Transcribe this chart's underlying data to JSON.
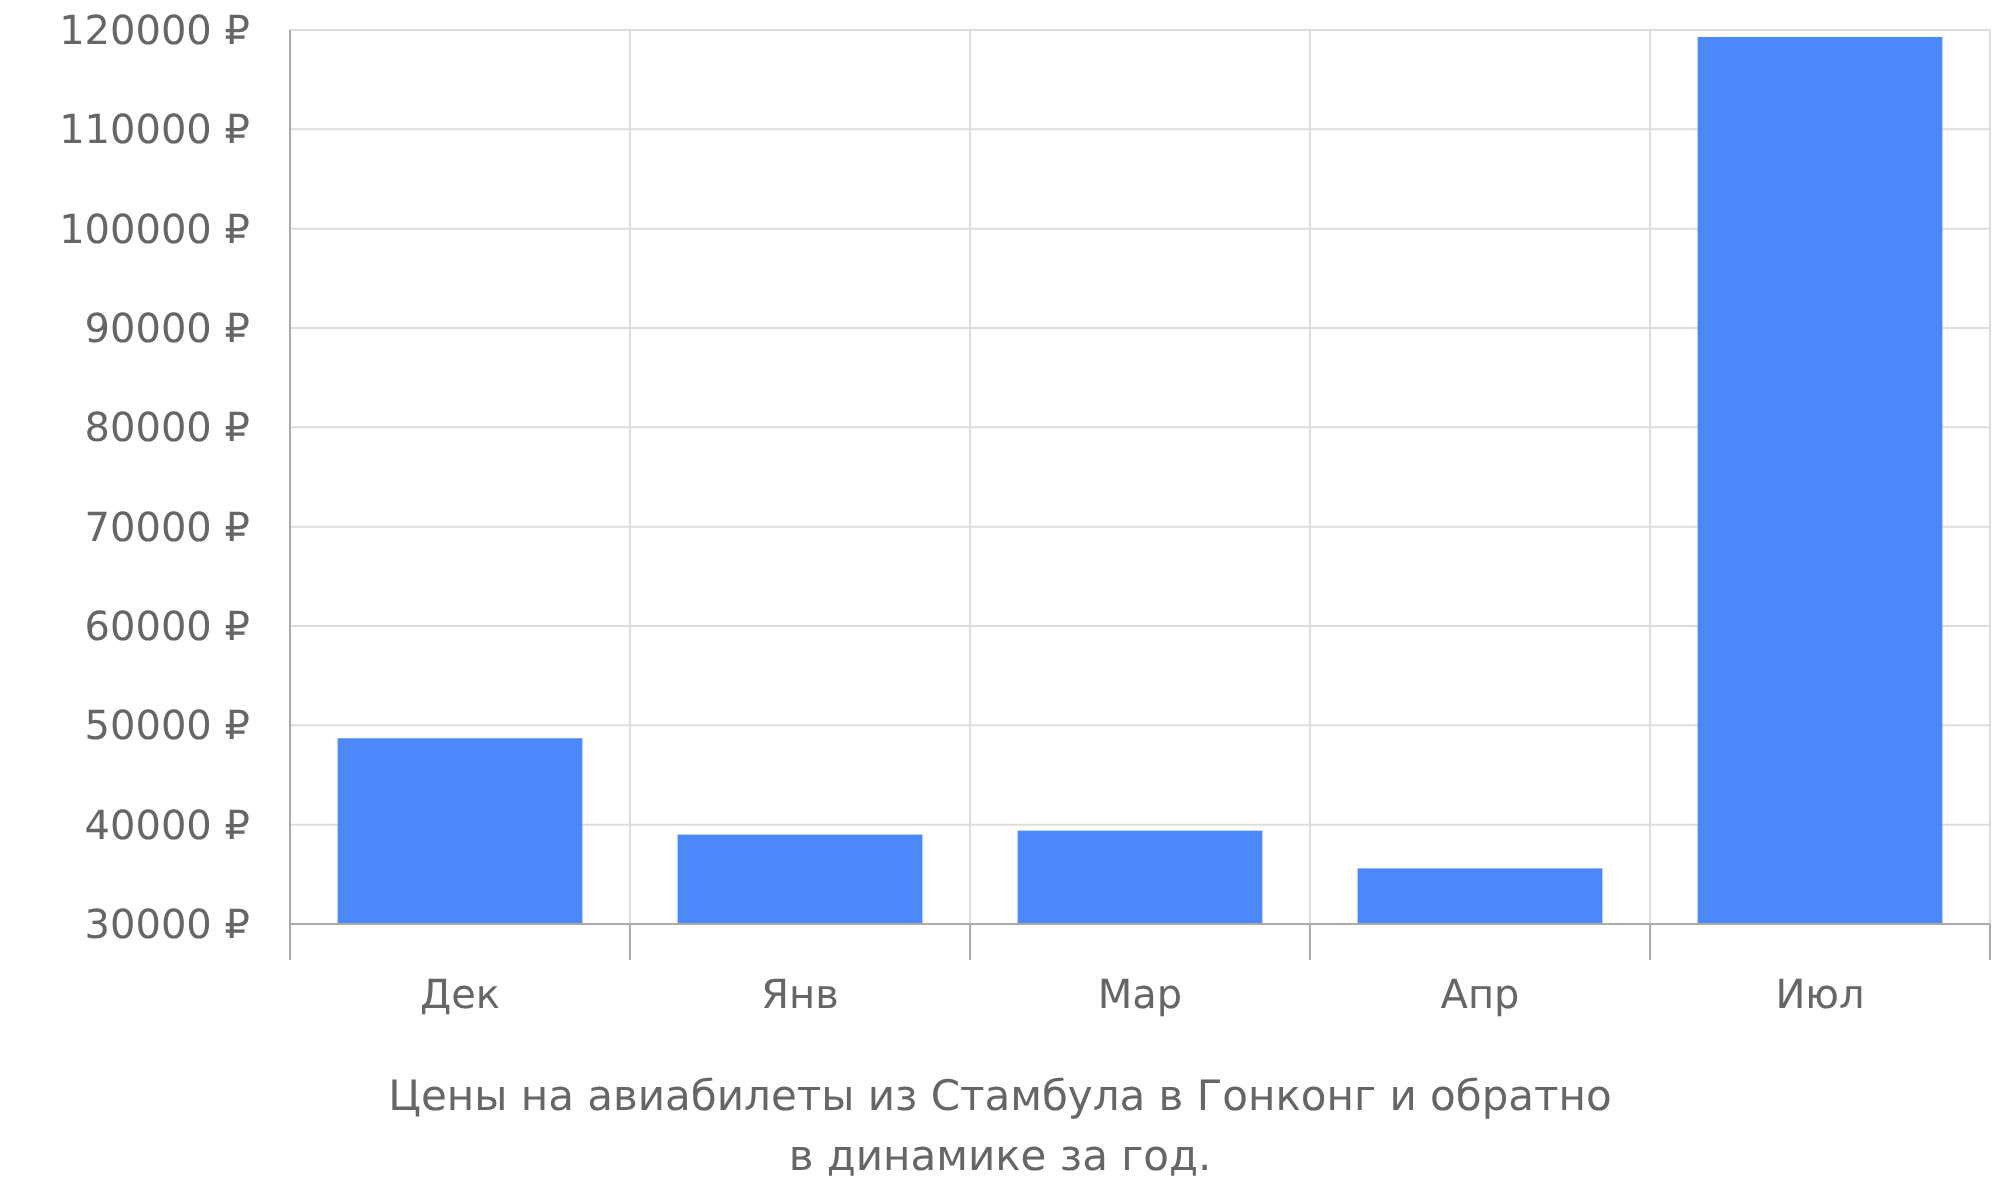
{
  "chart_data": {
    "type": "bar",
    "categories": [
      "Дек",
      "Янв",
      "Мар",
      "Апр",
      "Июл"
    ],
    "values": [
      48700,
      39000,
      39400,
      35600,
      119300
    ],
    "color": "#4d88fa",
    "ylim": [
      30000,
      120000
    ],
    "yticks": [
      {
        "value": 30000,
        "label": "30000 ₽"
      },
      {
        "value": 40000,
        "label": "40000 ₽"
      },
      {
        "value": 50000,
        "label": "50000 ₽"
      },
      {
        "value": 60000,
        "label": "60000 ₽"
      },
      {
        "value": 70000,
        "label": "70000 ₽"
      },
      {
        "value": 80000,
        "label": "80000 ₽"
      },
      {
        "value": 90000,
        "label": "90000 ₽"
      },
      {
        "value": 100000,
        "label": "100000 ₽"
      },
      {
        "value": 110000,
        "label": "110000 ₽"
      },
      {
        "value": 120000,
        "label": "120000 ₽"
      }
    ],
    "grid": true,
    "annotations": [
      "Цены на авиабилеты из Стамбула в Гонконг и обратно",
      "в динамике за год."
    ]
  }
}
